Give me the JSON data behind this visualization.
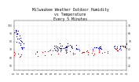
{
  "title": "Milwaukee Weather Outdoor Humidity\nvs Temperature\nEvery 5 Minutes",
  "title_fontsize": 3.5,
  "background_color": "#ffffff",
  "blue_color": "#0000cc",
  "red_color": "#cc0000",
  "grid_color": "#aaaaaa",
  "dot_size": 0.8,
  "y_left_ticks": [
    50,
    60,
    70,
    80,
    90,
    100
  ],
  "y_right_ticks": [
    20,
    30,
    40,
    50,
    60,
    70
  ],
  "ylim_left": [
    44,
    106
  ],
  "ylim_right": [
    14,
    76
  ],
  "xlim": [
    0,
    100
  ]
}
